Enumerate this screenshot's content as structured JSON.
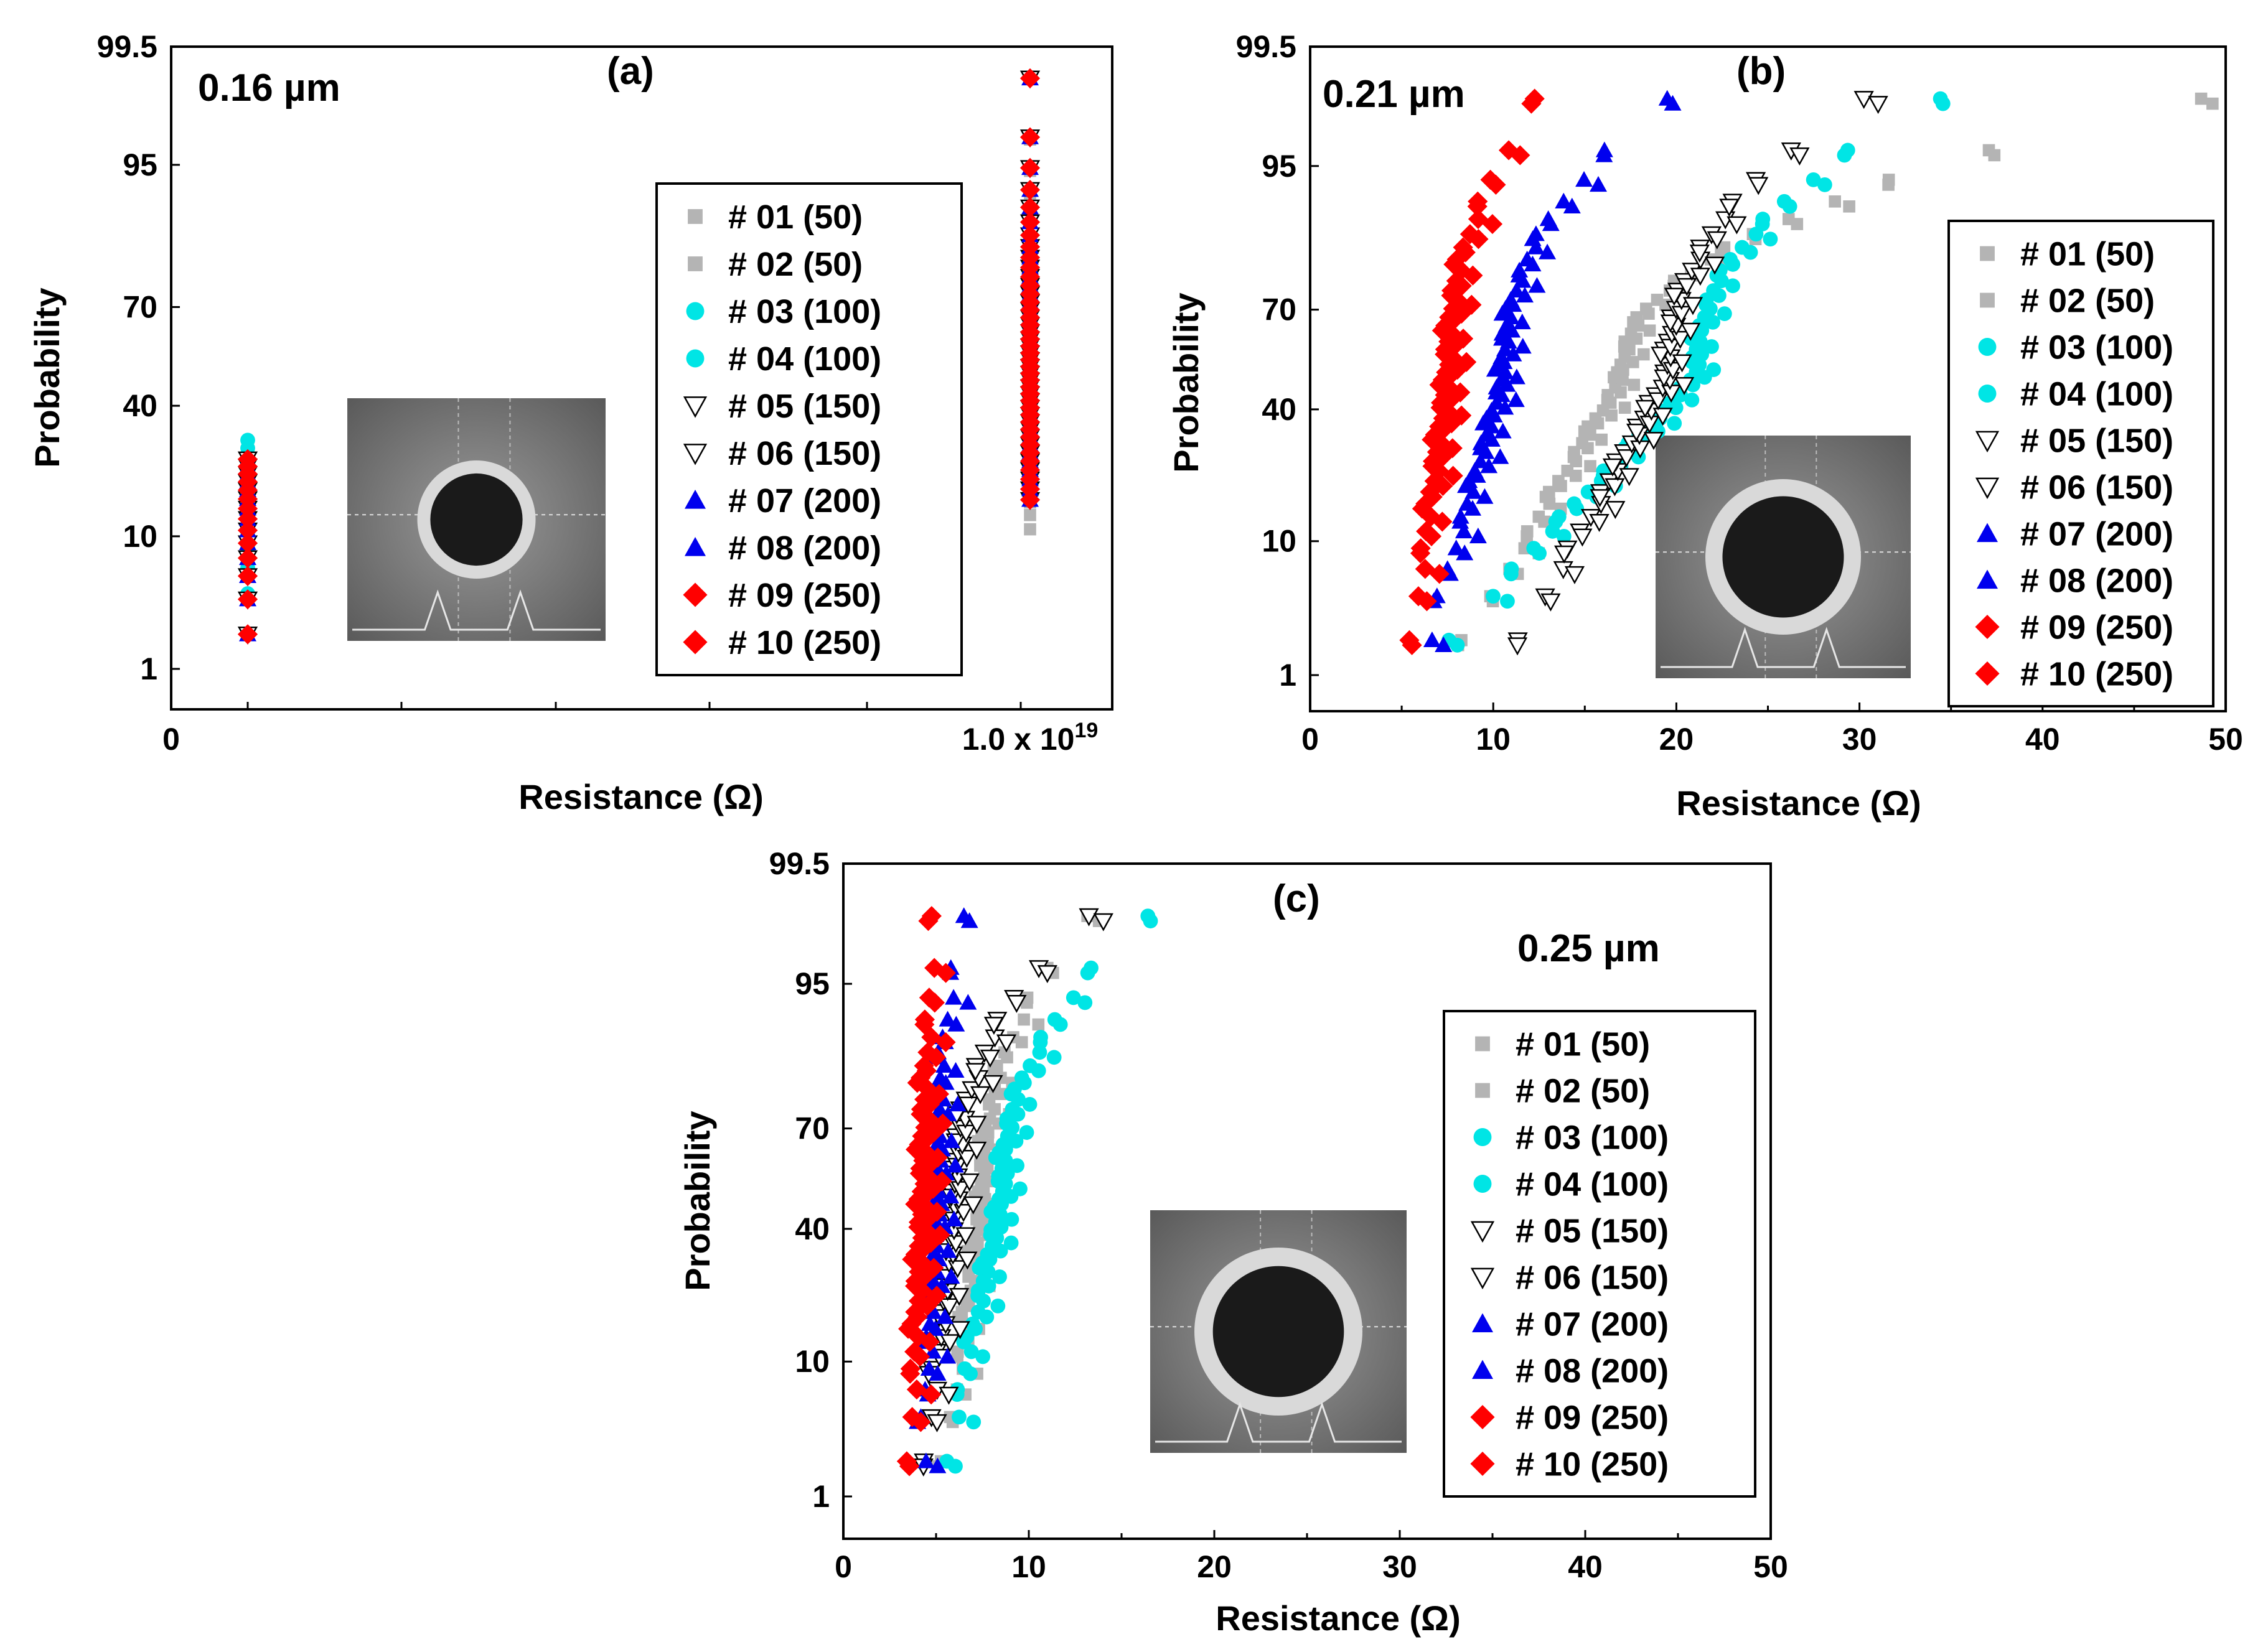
{
  "chart_data": [
    {
      "type": "scatter",
      "panel_label": "(a)",
      "size_label": "0.16 µm",
      "xlabel": "Resistance (Ω)",
      "ylabel": "Probability",
      "x_scale": "broken",
      "x_tick_labels": [
        "0",
        "1.0 x 10",
        "19"
      ],
      "y_tick_labels": [
        "99.5",
        "95",
        "70",
        "40",
        "10",
        "1"
      ],
      "y_ticks": [
        99.5,
        95,
        70,
        40,
        10,
        1
      ],
      "y_scale": "normal-probability",
      "legend_placement": "right",
      "inset_image": "SEM image of contact hole with intensity profile",
      "legend": [
        {
          "label": "# 01",
          "count": "(50)",
          "marker": "square",
          "color": "#b4b4b4"
        },
        {
          "label": "# 02",
          "count": "(50)",
          "marker": "square",
          "color": "#b4b4b4"
        },
        {
          "label": "# 03",
          "count": "(100)",
          "marker": "circle",
          "color": "#00e5e5"
        },
        {
          "label": "# 04",
          "count": "(100)",
          "marker": "circle",
          "color": "#00e5e5"
        },
        {
          "label": "# 05",
          "count": "(150)",
          "marker": "triangle-down-open",
          "color": "#000000"
        },
        {
          "label": "# 06",
          "count": "(150)",
          "marker": "triangle-down-open",
          "color": "#000000"
        },
        {
          "label": "# 07",
          "count": "(200)",
          "marker": "triangle-up",
          "color": "#0000ee"
        },
        {
          "label": "# 08",
          "count": "(200)",
          "marker": "triangle-up",
          "color": "#0000ee"
        },
        {
          "label": "# 09",
          "count": "(250)",
          "marker": "diamond",
          "color": "#ff0000"
        },
        {
          "label": "# 10",
          "count": "(250)",
          "marker": "diamond",
          "color": "#ff0000"
        }
      ],
      "clusters": [
        {
          "x_position": "low",
          "p_min": 2,
          "p_max": 30
        },
        {
          "x_position": "1.0 x 10^19",
          "p_min": 11,
          "p_max": 99
        }
      ]
    },
    {
      "type": "scatter",
      "panel_label": "(b)",
      "size_label": "0.21 µm",
      "xlabel": "Resistance (Ω)",
      "ylabel": "Probability",
      "xlim": [
        0,
        50
      ],
      "x_ticks": [
        0,
        10,
        20,
        30,
        40,
        50
      ],
      "y_tick_labels": [
        "99.5",
        "95",
        "70",
        "40",
        "10",
        "1"
      ],
      "y_ticks": [
        99.5,
        95,
        70,
        40,
        10,
        1
      ],
      "y_scale": "normal-probability",
      "legend_placement": "right",
      "inset_image": "SEM image of contact hole with intensity profile",
      "legend": [
        {
          "label": "# 01",
          "count": "(50)",
          "marker": "square",
          "color": "#b4b4b4"
        },
        {
          "label": "# 02",
          "count": "(50)",
          "marker": "square",
          "color": "#b4b4b4"
        },
        {
          "label": "# 03",
          "count": "(100)",
          "marker": "circle",
          "color": "#00e5e5"
        },
        {
          "label": "# 04",
          "count": "(100)",
          "marker": "circle",
          "color": "#00e5e5"
        },
        {
          "label": "# 05",
          "count": "(150)",
          "marker": "triangle-down-open",
          "color": "#000000"
        },
        {
          "label": "# 06",
          "count": "(150)",
          "marker": "triangle-down-open",
          "color": "#000000"
        },
        {
          "label": "# 07",
          "count": "(200)",
          "marker": "triangle-up",
          "color": "#0000ee"
        },
        {
          "label": "# 08",
          "count": "(200)",
          "marker": "triangle-up",
          "color": "#0000ee"
        },
        {
          "label": "# 09",
          "count": "(250)",
          "marker": "diamond",
          "color": "#ff0000"
        },
        {
          "label": "# 10",
          "count": "(250)",
          "marker": "diamond",
          "color": "#ff0000"
        }
      ],
      "series": [
        {
          "group": "# 01 / # 02 (50)",
          "x_min": 8.5,
          "x_median": 17,
          "x_max": 48.5
        },
        {
          "group": "# 03 / # 04 (100)",
          "x_min": 7.5,
          "x_median": 21,
          "x_max": 34.5
        },
        {
          "group": "# 05 / # 06 (150)",
          "x_min": 11.5,
          "x_median": 19.5,
          "x_max": 30
        },
        {
          "group": "# 07 / # 08 (200)",
          "x_min": 6.5,
          "x_median": 10.5,
          "x_max": 19.5
        },
        {
          "group": "# 09 / # 10 (250)",
          "x_min": 5.5,
          "x_median": 7.5,
          "x_max": 12.5
        }
      ]
    },
    {
      "type": "scatter",
      "panel_label": "(c)",
      "size_label": "0.25 µm",
      "xlabel": "Resistance (Ω)",
      "ylabel": "Probability",
      "xlim": [
        0,
        50
      ],
      "x_ticks": [
        0,
        10,
        20,
        30,
        40,
        50
      ],
      "y_tick_labels": [
        "99.5",
        "95",
        "70",
        "40",
        "10",
        "1"
      ],
      "y_ticks": [
        99.5,
        95,
        70,
        40,
        10,
        1
      ],
      "y_scale": "normal-probability",
      "legend_placement": "right",
      "inset_image": "SEM image of contact hole with intensity profile",
      "legend": [
        {
          "label": "# 01",
          "count": "(50)",
          "marker": "square",
          "color": "#b4b4b4"
        },
        {
          "label": "# 02",
          "count": "(50)",
          "marker": "square",
          "color": "#b4b4b4"
        },
        {
          "label": "# 03",
          "count": "(100)",
          "marker": "circle",
          "color": "#00e5e5"
        },
        {
          "label": "# 04",
          "count": "(100)",
          "marker": "circle",
          "color": "#00e5e5"
        },
        {
          "label": "# 05",
          "count": "(150)",
          "marker": "triangle-down-open",
          "color": "#000000"
        },
        {
          "label": "# 06",
          "count": "(150)",
          "marker": "triangle-down-open",
          "color": "#000000"
        },
        {
          "label": "# 07",
          "count": "(200)",
          "marker": "triangle-up",
          "color": "#0000ee"
        },
        {
          "label": "# 08",
          "count": "(200)",
          "marker": "triangle-up",
          "color": "#0000ee"
        },
        {
          "label": "# 09",
          "count": "(250)",
          "marker": "diamond",
          "color": "#ff0000"
        },
        {
          "label": "# 10",
          "count": "(250)",
          "marker": "diamond",
          "color": "#ff0000"
        }
      ],
      "series": [
        {
          "group": "# 01 / # 02 (50)",
          "x_min": 5.5,
          "x_median": 7.5,
          "x_max": 13
        },
        {
          "group": "# 03 / # 04 (100)",
          "x_min": 5.5,
          "x_median": 8.5,
          "x_max": 16.5
        },
        {
          "group": "# 05 / # 06 (150)",
          "x_min": 4.5,
          "x_median": 6,
          "x_max": 13
        },
        {
          "group": "# 07 / # 08 (200)",
          "x_min": 4.3,
          "x_median": 5,
          "x_max": 6.5
        },
        {
          "group": "# 09 / # 10 (250)",
          "x_min": 3.5,
          "x_median": 4.3,
          "x_max": 5
        }
      ]
    }
  ]
}
